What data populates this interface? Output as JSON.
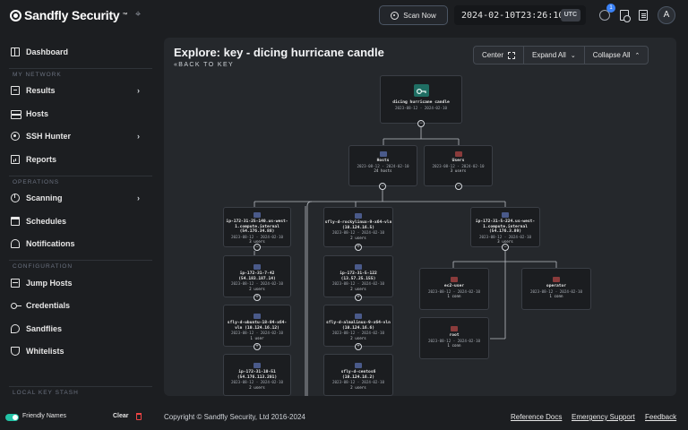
{
  "brand": {
    "name": "Sandfly Security",
    "tm": "™"
  },
  "topbar": {
    "scan_button": "Scan Now",
    "datetime": "2024-02-10T23:26:10Z",
    "timezone": "UTC",
    "tasks_badge": "1",
    "avatar_initial": "A"
  },
  "sidebar": {
    "dashboard": "Dashboard",
    "section_my_network": "MY NETWORK",
    "results": "Results",
    "hosts": "Hosts",
    "ssh_hunter": "SSH Hunter",
    "reports": "Reports",
    "section_operations": "OPERATIONS",
    "scanning": "Scanning",
    "schedules": "Schedules",
    "notifications": "Notifications",
    "section_configuration": "CONFIGURATION",
    "jump_hosts": "Jump Hosts",
    "credentials": "Credentials",
    "sandflies": "Sandflies",
    "whitelists": "Whitelists",
    "section_local_key_stash": "LOCAL KEY STASH",
    "friendly_names": "Friendly Names",
    "clear": "Clear"
  },
  "main": {
    "title": "Explore: key - dicing hurricane candle",
    "back": "«BACK TO KEY",
    "center_button": "Center",
    "expand_button": "Expand All",
    "collapse_button": "Collapse All"
  },
  "graph": {
    "root": {
      "title": "dicing hurricane candle",
      "dates": "2023-08-12 - 2024-02-10"
    },
    "hosts": {
      "title": "Hosts",
      "dates": "2023-08-12 - 2024-02-10",
      "count": "24 hosts"
    },
    "users": {
      "title": "Users",
      "dates": "2023-08-12 - 2024-02-10",
      "count": "3 users"
    },
    "host_nodes": [
      {
        "title": "ip-172-31-25-140.us-west-1.compute.internal (54.176.34.88)",
        "dates": "2023-08-12 - 2024-02-10",
        "count": "3 users"
      },
      {
        "title": "sfly-d-rockylinux-9-x64-vln (10.124.16.5)",
        "dates": "2023-08-12 - 2024-02-10",
        "count": "2 users"
      },
      {
        "title": "ip-172-31-5-224.us-west-1.compute.internal (54.176.3.89)",
        "dates": "2023-08-12 - 2024-02-10",
        "count": "3 users"
      },
      {
        "title": "ip-172-31-7-42 (54.183.187.14)",
        "dates": "2023-08-12 - 2024-02-10",
        "count": "2 users"
      },
      {
        "title": "ip-172-31-5-122 (13.57.25.155)",
        "dates": "2023-08-12 - 2024-02-10",
        "count": "2 users"
      },
      {
        "title": "sfly-d-ubuntu-18-04-x64-vln (10.124.16.12)",
        "dates": "2023-08-12 - 2024-02-10",
        "count": "1 user"
      },
      {
        "title": "sfly-d-almalinux-9-x64-vln (10.124.16.6)",
        "dates": "2023-08-12 - 2024-02-10",
        "count": "2 users"
      },
      {
        "title": "ip-172-31-10-51 (54.176.113.201)",
        "dates": "2023-08-12 - 2024-02-10",
        "count": "2 users"
      },
      {
        "title": "sfly-d-centos6 (10.124.16.2)",
        "dates": "2023-08-12 - 2024-02-10",
        "count": "2 users"
      }
    ],
    "user_nodes": [
      {
        "title": "ec2-user",
        "dates": "2023-08-12 - 2024-02-10",
        "count": "1 conn"
      },
      {
        "title": "operator",
        "dates": "2023-08-12 - 2024-02-10",
        "count": "1 conn"
      },
      {
        "title": "root",
        "dates": "2023-08-12 - 2024-02-10",
        "count": "1 conn"
      }
    ]
  },
  "footer": {
    "copyright": "Copyright © Sandfly Security, Ltd 2016-2024",
    "reference_docs": "Reference Docs",
    "emergency_support": "Emergency Support",
    "feedback": "Feedback"
  },
  "colors": {
    "accent": "#22c3a6",
    "key_icon": "#1f6e63",
    "host_icon": "#4a5a8a",
    "user_icon": "#8a3b3b",
    "badge": "#3b82f6"
  }
}
